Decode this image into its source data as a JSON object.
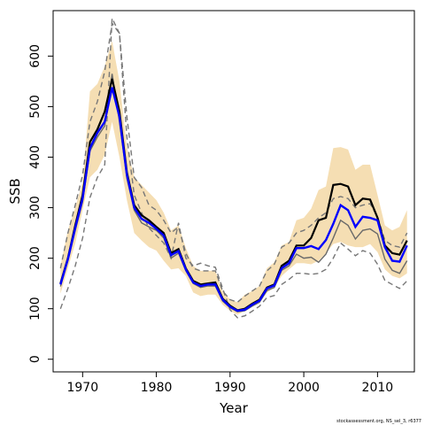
{
  "chart_data": {
    "type": "line",
    "title": "",
    "xlabel": "Year",
    "ylabel": "SSB",
    "xlim": [
      1966,
      2015
    ],
    "ylim": [
      -25,
      690
    ],
    "x_ticks": [
      1970,
      1980,
      1990,
      2000,
      2010
    ],
    "y_ticks": [
      0,
      100,
      200,
      300,
      400,
      500,
      600
    ],
    "grid": false,
    "legend": "none",
    "footnote": "stockassessment.org, NS_sel_3, r6377",
    "colors": {
      "band": "#f5deb3",
      "main": "#000000",
      "blue": "#0000ff",
      "gray": "#696969",
      "dashed": "#777777"
    },
    "x": [
      1967,
      1968,
      1969,
      1970,
      1971,
      1972,
      1973,
      1974,
      1975,
      1976,
      1977,
      1978,
      1979,
      1980,
      1981,
      1982,
      1983,
      1984,
      1985,
      1986,
      1987,
      1988,
      1989,
      1990,
      1991,
      1992,
      1993,
      1994,
      1995,
      1996,
      1997,
      1998,
      1999,
      2000,
      2001,
      2002,
      2003,
      2004,
      2005,
      2006,
      2007,
      2008,
      2009,
      2010,
      2011,
      2012,
      2013,
      2014
    ],
    "band": {
      "upper": [
        185,
        255,
        300,
        350,
        530,
        545,
        580,
        630,
        550,
        420,
        360,
        345,
        330,
        315,
        290,
        255,
        265,
        220,
        185,
        175,
        175,
        175,
        135,
        118,
        113,
        128,
        135,
        145,
        180,
        192,
        225,
        232,
        275,
        280,
        298,
        335,
        342,
        418,
        420,
        415,
        375,
        385,
        385,
        325,
        265,
        255,
        262,
        295
      ],
      "lower": [
        130,
        180,
        230,
        295,
        360,
        375,
        405,
        470,
        400,
        315,
        250,
        235,
        222,
        215,
        195,
        178,
        180,
        165,
        132,
        125,
        128,
        128,
        108,
        96,
        88,
        96,
        105,
        112,
        132,
        142,
        165,
        178,
        190,
        190,
        188,
        195,
        210,
        228,
        232,
        225,
        222,
        222,
        228,
        212,
        178,
        165,
        160,
        170
      ]
    },
    "series": [
      {
        "values": [
          150,
          200,
          265,
          325,
          430,
          455,
          490,
          555,
          490,
          370,
          305,
          285,
          275,
          262,
          250,
          210,
          218,
          180,
          155,
          148,
          150,
          152,
          120,
          106,
          97,
          100,
          110,
          118,
          142,
          148,
          185,
          195,
          225,
          225,
          240,
          275,
          280,
          345,
          347,
          342,
          305,
          318,
          316,
          280,
          225,
          210,
          207,
          235
        ]
      },
      {
        "values": [
          148,
          198,
          260,
          318,
          418,
          448,
          470,
          538,
          480,
          365,
          300,
          278,
          270,
          258,
          245,
          206,
          214,
          178,
          152,
          145,
          148,
          148,
          118,
          104,
          96,
          98,
          108,
          116,
          140,
          146,
          180,
          190,
          220,
          220,
          224,
          218,
          236,
          268,
          305,
          295,
          262,
          282,
          280,
          275,
          222,
          195,
          193,
          225
        ]
      },
      {
        "values": [
          144,
          195,
          255,
          312,
          412,
          440,
          462,
          565,
          470,
          358,
          295,
          270,
          262,
          255,
          240,
          200,
          210,
          175,
          150,
          142,
          145,
          145,
          115,
          102,
          94,
          96,
          105,
          113,
          136,
          142,
          176,
          185,
          208,
          200,
          202,
          192,
          208,
          240,
          275,
          265,
          238,
          255,
          258,
          248,
          198,
          176,
          170,
          195
        ]
      },
      {
        "values": [
          100,
          140,
          185,
          240,
          320,
          360,
          385,
          675,
          645,
          440,
          325,
          290,
          260,
          245,
          230,
          200,
          270,
          200,
          185,
          190,
          185,
          182,
          140,
          98,
          82,
          86,
          95,
          105,
          122,
          126,
          148,
          158,
          170,
          170,
          168,
          170,
          178,
          200,
          230,
          218,
          205,
          215,
          210,
          188,
          156,
          148,
          140,
          155
        ]
      },
      {
        "values": [
          180,
          250,
          305,
          365,
          470,
          510,
          570,
          665,
          645,
          480,
          360,
          340,
          305,
          295,
          275,
          250,
          262,
          210,
          180,
          175,
          175,
          175,
          135,
          118,
          113,
          125,
          135,
          145,
          175,
          188,
          222,
          230,
          250,
          255,
          265,
          280,
          290,
          318,
          322,
          318,
          300,
          305,
          308,
          282,
          235,
          225,
          222,
          250
        ]
      }
    ]
  }
}
